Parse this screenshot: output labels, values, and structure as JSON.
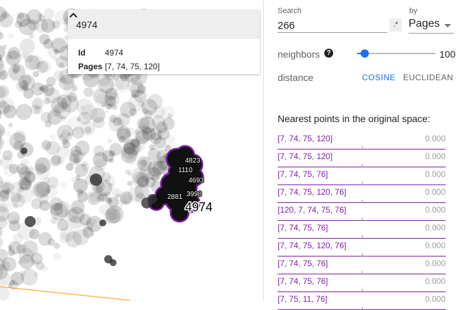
{
  "selection": {
    "title": "4974",
    "fields": [
      {
        "key": "Id",
        "value": "4974"
      },
      {
        "key": "Pages",
        "value": "[7, 74, 75, 120]"
      }
    ]
  },
  "cluster_labels": [
    "4823",
    "1110",
    "4693",
    "3998",
    "2881"
  ],
  "selected_label": "4974",
  "panel": {
    "search_label": "Search",
    "search_value": "266",
    "regex_label": ".*",
    "by_label": "by",
    "by_value": "Pages",
    "neighbors_label": "neighbors",
    "help_glyph": "?",
    "neighbors_value": "100",
    "neighbors_fraction": 0.1,
    "distance_label": "distance",
    "distance_options": [
      "COSINE",
      "EUCLIDEAN"
    ],
    "distance_selected": "COSINE",
    "nearest_title": "Nearest points in the original space:",
    "nearest": [
      {
        "label": "[7, 74, 75, 120]",
        "value": "0.000"
      },
      {
        "label": "[7, 74, 75, 120]",
        "value": "0.000"
      },
      {
        "label": "[7, 74, 75, 76]",
        "value": "0.000"
      },
      {
        "label": "[7, 74, 75, 120, 76]",
        "value": "0.000"
      },
      {
        "label": "[120, 7, 74, 75, 76]",
        "value": "0.000"
      },
      {
        "label": "[7, 74, 75, 76]",
        "value": "0.000"
      },
      {
        "label": "[7, 74, 75, 120, 76]",
        "value": "0.000"
      },
      {
        "label": "[7, 74, 75, 76]",
        "value": "0.000"
      },
      {
        "label": "[7, 74, 75, 76]",
        "value": "0.000"
      },
      {
        "label": "[7, 75, 11, 76]",
        "value": "0.000"
      }
    ]
  },
  "colors": {
    "accent": "#1a73e8",
    "neighbor": "#7b1fa2",
    "axis": "#ff9800"
  }
}
